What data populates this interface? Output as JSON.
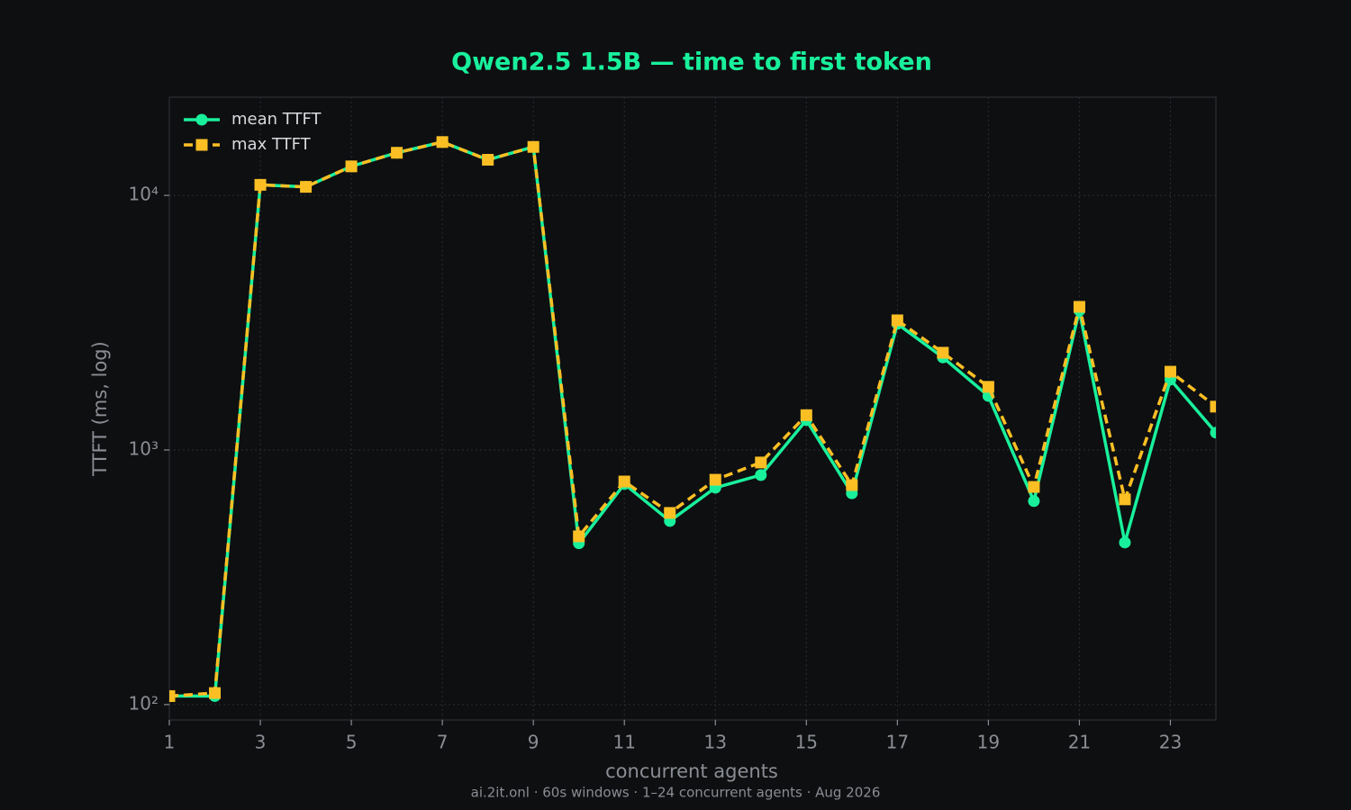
{
  "chart_data": {
    "type": "line",
    "title": "Qwen2.5 1.5B — time to first token",
    "xlabel": "concurrent agents",
    "ylabel": "TTFT (ms, log)",
    "footer": "ai.2it.onl · 60s windows · 1–24 concurrent agents · Aug 2026",
    "x": [
      1,
      2,
      3,
      4,
      5,
      6,
      7,
      8,
      9,
      10,
      11,
      12,
      13,
      14,
      15,
      16,
      17,
      18,
      19,
      20,
      21,
      22,
      23,
      24
    ],
    "series": [
      {
        "name": "mean TTFT",
        "color": "#19f09c",
        "linestyle": "solid",
        "marker": "circle",
        "values": [
          108,
          108,
          11000,
          10800,
          13000,
          14700,
          16200,
          13800,
          15500,
          430,
          735,
          526,
          711,
          797,
          1310,
          676,
          3130,
          2310,
          1630,
          630,
          3530,
          433,
          1890,
          1170
        ]
      },
      {
        "name": "max TTFT",
        "color": "#fbbf24",
        "linestyle": "dashed",
        "marker": "square",
        "values": [
          108,
          111,
          11000,
          10800,
          13000,
          14700,
          16200,
          13800,
          15500,
          458,
          752,
          566,
          764,
          893,
          1370,
          728,
          3230,
          2410,
          1770,
          716,
          3650,
          640,
          2030,
          1480
        ]
      }
    ],
    "xlim": [
      1,
      24
    ],
    "xticks": [
      1,
      3,
      5,
      7,
      9,
      11,
      13,
      15,
      17,
      19,
      21,
      23
    ],
    "ylim": [
      87,
      24300
    ],
    "yscale": "log",
    "yticks": [
      {
        "value": 100,
        "label": "10²"
      },
      {
        "value": 1000,
        "label": "10³"
      },
      {
        "value": 10000,
        "label": "10⁴"
      }
    ],
    "grid": true,
    "legend": "upper left"
  }
}
